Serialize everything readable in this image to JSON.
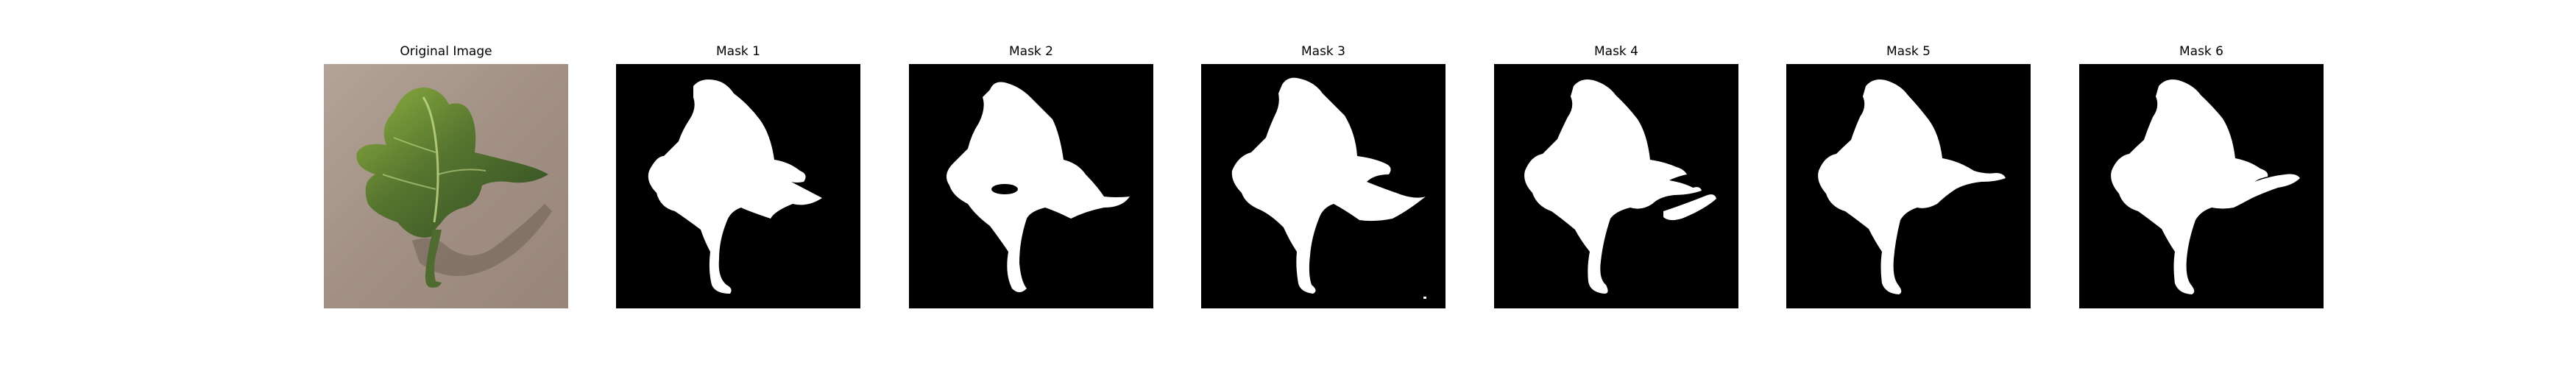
{
  "figure": {
    "panels": [
      {
        "title": "Original Image",
        "kind": "photo"
      },
      {
        "title": "Mask 1",
        "kind": "mask"
      },
      {
        "title": "Mask 2",
        "kind": "mask"
      },
      {
        "title": "Mask 3",
        "kind": "mask"
      },
      {
        "title": "Mask 4",
        "kind": "mask"
      },
      {
        "title": "Mask 5",
        "kind": "mask"
      },
      {
        "title": "Mask 6",
        "kind": "mask"
      }
    ]
  },
  "colors": {
    "mask_background": "#000000",
    "mask_foreground": "#ffffff",
    "sand": "#a69588",
    "leaf_dark": "#3f5a2a",
    "leaf_light": "#9fc04a"
  }
}
